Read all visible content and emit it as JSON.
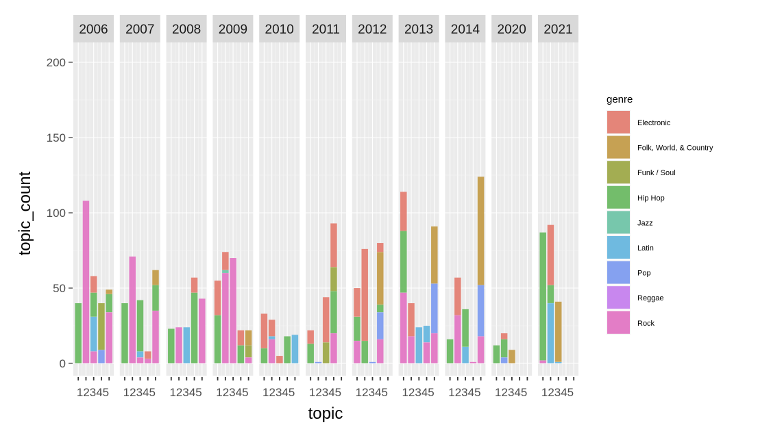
{
  "chart_data": {
    "type": "bar",
    "stacked": true,
    "facet_by": "year",
    "facets": [
      "2006",
      "2007",
      "2008",
      "2009",
      "2010",
      "2011",
      "2012",
      "2013",
      "2014",
      "2020",
      "2021"
    ],
    "x_categories": [
      "1",
      "2",
      "3",
      "4",
      "5"
    ],
    "x_tick_label": "12345",
    "xlabel": "topic",
    "ylabel": "topic_count",
    "ylim": [
      0,
      210
    ],
    "y_ticks": [
      0,
      50,
      100,
      150,
      200
    ],
    "grid": true,
    "legend": {
      "title": "genre",
      "placement": "right",
      "entries": [
        "Electronic",
        "Folk, World, & Country",
        "Funk / Soul",
        "Hip Hop",
        "Jazz",
        "Latin",
        "Pop",
        "Reggae",
        "Rock"
      ]
    },
    "colors": {
      "Electronic": "#E37C6F",
      "Folk, World, & Country": "#C29A45",
      "Funk / Soul": "#9CA744",
      "Hip Hop": "#68B85F",
      "Jazz": "#6CC3A6",
      "Latin": "#64B5DE",
      "Pop": "#7C9AF0",
      "Reggae": "#C47EEE",
      "Rock": "#E273C2"
    },
    "data": {
      "2006": [
        [
          [
            "Hip Hop",
            40
          ]
        ],
        [
          [
            "Rock",
            108
          ]
        ],
        [
          [
            "Rock",
            8
          ],
          [
            "Latin",
            23
          ],
          [
            "Hip Hop",
            16
          ],
          [
            "Electronic",
            11
          ]
        ],
        [
          [
            "Pop",
            9
          ],
          [
            "Funk / Soul",
            31
          ]
        ],
        [
          [
            "Rock",
            34
          ],
          [
            "Hip Hop",
            12
          ],
          [
            "Folk, World, & Country",
            3
          ]
        ]
      ],
      "2007": [
        [
          [
            "Hip Hop",
            40
          ]
        ],
        [
          [
            "Rock",
            71
          ]
        ],
        [
          [
            "Rock",
            4
          ],
          [
            "Latin",
            4
          ],
          [
            "Hip Hop",
            34
          ]
        ],
        [
          [
            "Rock",
            3
          ],
          [
            "Electronic",
            5
          ]
        ],
        [
          [
            "Rock",
            35
          ],
          [
            "Hip Hop",
            17
          ],
          [
            "Folk, World, & Country",
            10
          ]
        ]
      ],
      "2008": [
        [
          [
            "Hip Hop",
            23
          ]
        ],
        [
          [
            "Rock",
            24
          ]
        ],
        [
          [
            "Latin",
            24
          ]
        ],
        [
          [
            "Hip Hop",
            47
          ],
          [
            "Electronic",
            10
          ]
        ],
        [
          [
            "Rock",
            43
          ]
        ]
      ],
      "2009": [
        [
          [
            "Hip Hop",
            32
          ],
          [
            "Electronic",
            23
          ]
        ],
        [
          [
            "Rock",
            60
          ],
          [
            "Jazz",
            2
          ],
          [
            "Electronic",
            12
          ]
        ],
        [
          [
            "Rock",
            70
          ]
        ],
        [
          [
            "Hip Hop",
            12
          ],
          [
            "Electronic",
            10
          ]
        ],
        [
          [
            "Rock",
            4
          ],
          [
            "Funk / Soul",
            8
          ],
          [
            "Folk, World, & Country",
            10
          ]
        ]
      ],
      "2010": [
        [
          [
            "Hip Hop",
            10
          ],
          [
            "Electronic",
            23
          ]
        ],
        [
          [
            "Rock",
            16
          ],
          [
            "Latin",
            2
          ],
          [
            "Electronic",
            11
          ]
        ],
        [
          [
            "Electronic",
            5
          ]
        ],
        [
          [
            "Hip Hop",
            18
          ]
        ],
        [
          [
            "Latin",
            19
          ]
        ]
      ],
      "2011": [
        [
          [
            "Hip Hop",
            13
          ],
          [
            "Electronic",
            9
          ]
        ],
        [
          [
            "Pop",
            1
          ]
        ],
        [
          [
            "Funk / Soul",
            14
          ],
          [
            "Electronic",
            30
          ]
        ],
        [
          [
            "Rock",
            20
          ],
          [
            "Hip Hop",
            28
          ],
          [
            "Funk / Soul",
            16
          ],
          [
            "Electronic",
            29
          ]
        ],
        []
      ],
      "2012": [
        [
          [
            "Rock",
            15
          ],
          [
            "Hip Hop",
            16
          ],
          [
            "Electronic",
            19
          ]
        ],
        [
          [
            "Hip Hop",
            15
          ],
          [
            "Electronic",
            61
          ]
        ],
        [
          [
            "Pop",
            1
          ]
        ],
        [
          [
            "Rock",
            16
          ],
          [
            "Pop",
            18
          ],
          [
            "Hip Hop",
            5
          ],
          [
            "Folk, World, & Country",
            35
          ],
          [
            "Electronic",
            6
          ]
        ],
        []
      ],
      "2013": [
        [
          [
            "Rock",
            47
          ],
          [
            "Hip Hop",
            41
          ],
          [
            "Electronic",
            26
          ]
        ],
        [
          [
            "Rock",
            18
          ],
          [
            "Electronic",
            22
          ]
        ],
        [
          [
            "Latin",
            24
          ]
        ],
        [
          [
            "Rock",
            14
          ],
          [
            "Latin",
            11
          ]
        ],
        [
          [
            "Rock",
            20
          ],
          [
            "Pop",
            33
          ],
          [
            "Folk, World, & Country",
            38
          ]
        ]
      ],
      "2014": [
        [
          [
            "Hip Hop",
            16
          ]
        ],
        [
          [
            "Rock",
            32
          ],
          [
            "Electronic",
            25
          ]
        ],
        [
          [
            "Latin",
            11
          ],
          [
            "Hip Hop",
            25
          ]
        ],
        [
          [
            "Rock",
            1
          ]
        ],
        [
          [
            "Rock",
            18
          ],
          [
            "Pop",
            34
          ],
          [
            "Folk, World, & Country",
            72
          ]
        ]
      ],
      "2020": [
        [
          [
            "Hip Hop",
            12
          ]
        ],
        [
          [
            "Pop",
            4
          ],
          [
            "Hip Hop",
            12
          ],
          [
            "Electronic",
            4
          ]
        ],
        [
          [
            "Folk, World, & Country",
            9
          ]
        ],
        [],
        []
      ],
      "2021": [
        [
          [
            "Rock",
            2
          ],
          [
            "Hip Hop",
            85
          ]
        ],
        [
          [
            "Latin",
            40
          ],
          [
            "Hip Hop",
            12
          ],
          [
            "Electronic",
            40
          ]
        ],
        [
          [
            "Latin",
            1
          ],
          [
            "Folk, World, & Country",
            40
          ]
        ],
        [],
        []
      ]
    }
  }
}
